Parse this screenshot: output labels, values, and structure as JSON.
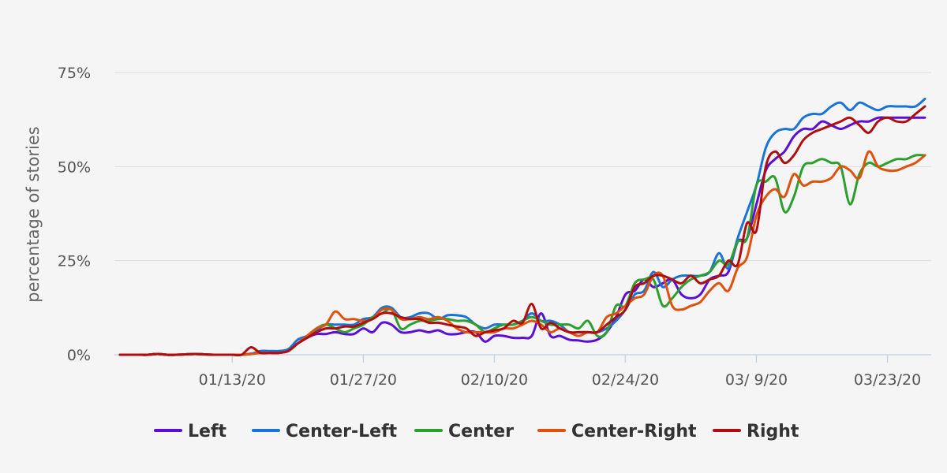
{
  "chart_data": {
    "type": "line",
    "title": "",
    "xlabel": "",
    "ylabel": "percentage of stories",
    "ylim": [
      0,
      75
    ],
    "y_ticks": [
      "0%",
      "25%",
      "50%",
      "75%"
    ],
    "x_ticks": [
      "01/13/20",
      "01/27/20",
      "02/10/20",
      "02/24/20",
      "03/ 9/20",
      "03/23/20"
    ],
    "x_range": [
      "2020-01-01",
      "2020-03-27"
    ],
    "grid": true,
    "legend_position": "bottom",
    "x": [
      "2020-01-01",
      "2020-01-02",
      "2020-01-03",
      "2020-01-04",
      "2020-01-05",
      "2020-01-06",
      "2020-01-07",
      "2020-01-08",
      "2020-01-09",
      "2020-01-10",
      "2020-01-11",
      "2020-01-12",
      "2020-01-13",
      "2020-01-14",
      "2020-01-15",
      "2020-01-16",
      "2020-01-17",
      "2020-01-18",
      "2020-01-19",
      "2020-01-20",
      "2020-01-21",
      "2020-01-22",
      "2020-01-23",
      "2020-01-24",
      "2020-01-25",
      "2020-01-26",
      "2020-01-27",
      "2020-01-28",
      "2020-01-29",
      "2020-01-30",
      "2020-01-31",
      "2020-02-01",
      "2020-02-02",
      "2020-02-03",
      "2020-02-04",
      "2020-02-05",
      "2020-02-06",
      "2020-02-07",
      "2020-02-08",
      "2020-02-09",
      "2020-02-10",
      "2020-02-11",
      "2020-02-12",
      "2020-02-13",
      "2020-02-14",
      "2020-02-15",
      "2020-02-16",
      "2020-02-17",
      "2020-02-18",
      "2020-02-19",
      "2020-02-20",
      "2020-02-21",
      "2020-02-22",
      "2020-02-23",
      "2020-02-24",
      "2020-02-25",
      "2020-02-26",
      "2020-02-27",
      "2020-02-28",
      "2020-02-29",
      "2020-03-01",
      "2020-03-02",
      "2020-03-03",
      "2020-03-04",
      "2020-03-05",
      "2020-03-06",
      "2020-03-07",
      "2020-03-08",
      "2020-03-09",
      "2020-03-10",
      "2020-03-11",
      "2020-03-12",
      "2020-03-13",
      "2020-03-14",
      "2020-03-15",
      "2020-03-16",
      "2020-03-17",
      "2020-03-18",
      "2020-03-19",
      "2020-03-20",
      "2020-03-21",
      "2020-03-22",
      "2020-03-23",
      "2020-03-24",
      "2020-03-25",
      "2020-03-26",
      "2020-03-27"
    ],
    "series": [
      {
        "name": "Left",
        "color": "#5b0fd6",
        "values": [
          0,
          0,
          0,
          0,
          0.2,
          0,
          0,
          0.1,
          0.2,
          0.1,
          0,
          0,
          0,
          0,
          0.3,
          0.5,
          0.5,
          0.5,
          1.5,
          3,
          4.5,
          5.5,
          5.5,
          6,
          5.5,
          5.5,
          7,
          6,
          8.5,
          8,
          6,
          6,
          6.5,
          6,
          6.5,
          5.5,
          5.5,
          6,
          6,
          3.5,
          5,
          5,
          4.5,
          4.5,
          5,
          11,
          5,
          5,
          4,
          3.8,
          3.5,
          4,
          6,
          10,
          16,
          17,
          20,
          18,
          19,
          20,
          16,
          15,
          16,
          20,
          21,
          22,
          30,
          31,
          40,
          49,
          52,
          54,
          58,
          60,
          60,
          62,
          61,
          60,
          61,
          62,
          62,
          63,
          63,
          63,
          63,
          63,
          63
        ]
      },
      {
        "name": "Center-Left",
        "color": "#1a73d9",
        "values": [
          0,
          0,
          0,
          0,
          0.2,
          0,
          0,
          0.1,
          0.2,
          0.1,
          0,
          0,
          0,
          0,
          0.2,
          1,
          1,
          1,
          1.5,
          4,
          5,
          6.5,
          8,
          8,
          8,
          8,
          9.5,
          10,
          12.5,
          12.5,
          10,
          10,
          11,
          11,
          9.5,
          10.5,
          10.5,
          10,
          8,
          7,
          8,
          8,
          8,
          9,
          11,
          9,
          9,
          8,
          6,
          6,
          6,
          6,
          7,
          9,
          12,
          16,
          17,
          22,
          18,
          20,
          21,
          21,
          21,
          22,
          27,
          23,
          31,
          38,
          45,
          55,
          59,
          60,
          60,
          63,
          64,
          64,
          66,
          67,
          65,
          67,
          66,
          65,
          66,
          66,
          66,
          66,
          68
        ]
      },
      {
        "name": "Center",
        "color": "#2ca02c",
        "values": [
          0,
          0,
          0,
          0,
          0.2,
          0,
          0,
          0.1,
          0.2,
          0.1,
          0,
          0,
          0,
          0,
          0.2,
          0.5,
          0.5,
          0.5,
          1,
          3,
          5,
          7,
          8,
          7,
          6,
          7,
          8,
          10,
          11,
          12,
          7,
          8,
          9,
          9,
          9.5,
          9.5,
          9,
          9,
          8,
          6,
          7,
          8,
          8,
          9,
          10,
          9,
          8,
          8,
          8,
          7,
          9,
          5,
          6,
          13,
          13,
          19,
          20,
          20,
          13,
          15,
          18,
          20,
          21,
          22,
          25,
          24,
          30,
          31,
          45,
          46,
          47,
          38,
          42,
          50,
          51,
          52,
          51,
          50,
          40,
          48,
          51,
          50,
          51,
          52,
          52,
          53,
          53
        ]
      },
      {
        "name": "Center-Right",
        "color": "#e0520b",
        "values": [
          0,
          0,
          0,
          0,
          0.2,
          0,
          0,
          0.1,
          0.2,
          0.1,
          0,
          0,
          0,
          0,
          0.2,
          0.5,
          0.5,
          0.5,
          1,
          3,
          5,
          7,
          8,
          11.5,
          9.5,
          9.5,
          9,
          9.5,
          12,
          12,
          9.5,
          9.5,
          10,
          9.5,
          10,
          9,
          7,
          6,
          6,
          6,
          6,
          7,
          7,
          8,
          9,
          8,
          6,
          7,
          6,
          5,
          6,
          6,
          10,
          11,
          13,
          15,
          16,
          21,
          21,
          13,
          12,
          13,
          14,
          17,
          19,
          17,
          23,
          26,
          37,
          42,
          44,
          42,
          48,
          45,
          46,
          46,
          47,
          50,
          49,
          47,
          54,
          50,
          49,
          49,
          50,
          51,
          53
        ]
      },
      {
        "name": "Right",
        "color": "#b00e0e",
        "values": [
          0,
          0,
          0,
          0,
          0.2,
          0,
          0,
          0.1,
          0.2,
          0.1,
          0,
          0,
          0,
          0,
          2,
          0.5,
          0.5,
          0.5,
          1,
          3,
          4.5,
          6,
          7,
          7,
          7.5,
          7.5,
          8.5,
          9.5,
          11,
          11,
          10,
          9.5,
          9.5,
          8.5,
          8.5,
          8,
          7.5,
          7,
          5,
          6,
          6.5,
          7,
          9,
          8.5,
          13.5,
          7,
          8.5,
          7,
          6,
          6,
          6,
          6,
          8,
          10,
          12,
          18,
          19,
          21,
          21,
          20,
          19,
          21,
          19,
          20,
          21,
          25,
          24,
          35,
          33,
          50,
          54,
          51,
          53,
          57,
          59,
          60,
          61,
          62,
          63,
          61,
          59,
          62,
          63,
          62,
          62,
          64,
          66
        ]
      }
    ]
  }
}
